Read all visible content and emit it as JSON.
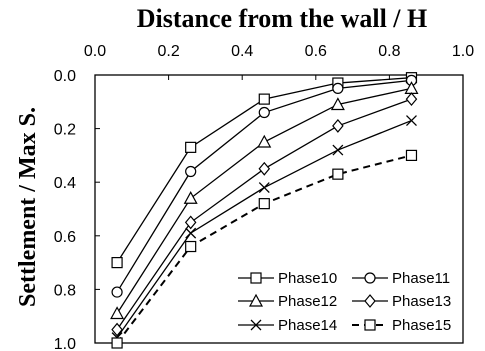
{
  "chart_data": {
    "type": "line",
    "title": "Distance from the wall / H",
    "xlabel": "",
    "ylabel": "Settlement / Max S.",
    "xlim": [
      0.0,
      1.0
    ],
    "ylim": [
      0.0,
      1.0
    ],
    "y_inverted": true,
    "x_axis_position": "top",
    "grid": false,
    "legend_position": "bottom-right",
    "x_ticks": [
      "0.0",
      "0.2",
      "0.4",
      "0.6",
      "0.8",
      "1.0"
    ],
    "y_ticks": [
      "0.0",
      "0.2",
      "0.4",
      "0.6",
      "0.8",
      "1.0"
    ],
    "x": [
      0.06,
      0.26,
      0.46,
      0.66,
      0.86
    ],
    "series": [
      {
        "name": "Phase10",
        "marker": "square",
        "line": "solid",
        "values": [
          0.7,
          0.27,
          0.09,
          0.03,
          0.01
        ]
      },
      {
        "name": "Phase11",
        "marker": "circle",
        "line": "solid",
        "values": [
          0.81,
          0.36,
          0.14,
          0.05,
          0.02
        ]
      },
      {
        "name": "Phase12",
        "marker": "triangle",
        "line": "solid",
        "values": [
          0.89,
          0.46,
          0.25,
          0.11,
          0.05
        ]
      },
      {
        "name": "Phase13",
        "marker": "diamond",
        "line": "solid",
        "values": [
          0.95,
          0.55,
          0.35,
          0.19,
          0.09
        ]
      },
      {
        "name": "Phase14",
        "marker": "x",
        "line": "solid",
        "values": [
          0.98,
          0.59,
          0.42,
          0.28,
          0.17
        ]
      },
      {
        "name": "Phase15",
        "marker": "square",
        "line": "dashed",
        "values": [
          1.0,
          0.64,
          0.48,
          0.37,
          0.3
        ]
      }
    ]
  }
}
